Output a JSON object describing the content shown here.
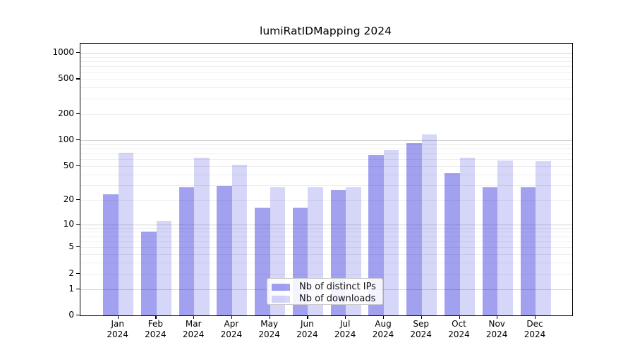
{
  "chart_data": {
    "type": "bar",
    "title": "lumiRatIDMapping 2024",
    "categories": [
      "Jan",
      "Feb",
      "Mar",
      "Apr",
      "May",
      "Jun",
      "Jul",
      "Aug",
      "Sep",
      "Oct",
      "Nov",
      "Dec"
    ],
    "year_label": "2024",
    "series": [
      {
        "name": "Nb of distinct IPs",
        "color_hex_on_white": "#a1a1f0",
        "values": [
          23,
          8,
          28,
          29,
          16,
          16,
          26,
          67,
          93,
          41,
          28,
          28
        ]
      },
      {
        "name": "Nb of downloads",
        "color_hex_on_white": "#d9d9f8",
        "values": [
          71,
          11,
          63,
          52,
          28,
          28,
          28,
          77,
          115,
          63,
          58,
          57
        ]
      }
    ],
    "yscale": "symlog-like: y position proportional to log10(value+1)",
    "ytick_values": [
      0,
      1,
      2,
      5,
      10,
      20,
      50,
      100,
      200,
      500,
      1000
    ],
    "ytick_labels": [
      "0",
      "1",
      "2",
      "5",
      "10",
      "20",
      "50",
      "100",
      "200",
      "500",
      "1000"
    ],
    "major_gridline_values": [
      1,
      10,
      100,
      1000
    ],
    "minor_gridline_values": [
      2,
      3,
      4,
      5,
      6,
      7,
      8,
      9,
      20,
      30,
      40,
      50,
      60,
      70,
      80,
      90,
      200,
      300,
      400,
      500,
      600,
      700,
      800,
      900
    ],
    "ylim": [
      0,
      1290
    ],
    "grid": "horizontal only",
    "legend_position": "inside plot, lower center",
    "legend_entries": [
      "Nb of distinct IPs",
      "Nb of downloads"
    ]
  }
}
